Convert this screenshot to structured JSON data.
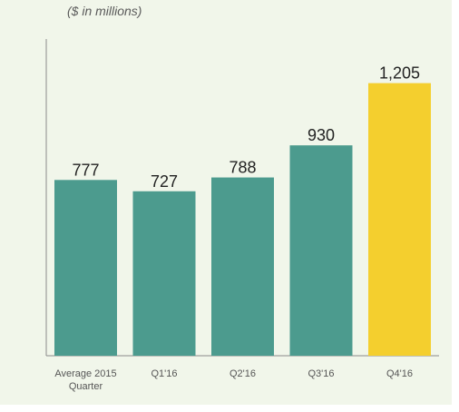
{
  "chart_data": {
    "type": "bar",
    "subtitle": "($ in millions)",
    "categories": [
      [
        "Average 2015",
        "Quarter"
      ],
      [
        "Q1'16"
      ],
      [
        "Q2'16"
      ],
      [
        "Q3'16"
      ],
      [
        "Q4'16"
      ]
    ],
    "values": [
      777,
      727,
      788,
      930,
      1205
    ],
    "value_labels": [
      "777",
      "727",
      "788",
      "930",
      "1,205"
    ],
    "bar_colors": [
      "#4c9b8e",
      "#4c9b8e",
      "#4c9b8e",
      "#4c9b8e",
      "#f4cf2e"
    ],
    "ylim": [
      0,
      1400
    ],
    "grid": false,
    "legend": "none"
  }
}
